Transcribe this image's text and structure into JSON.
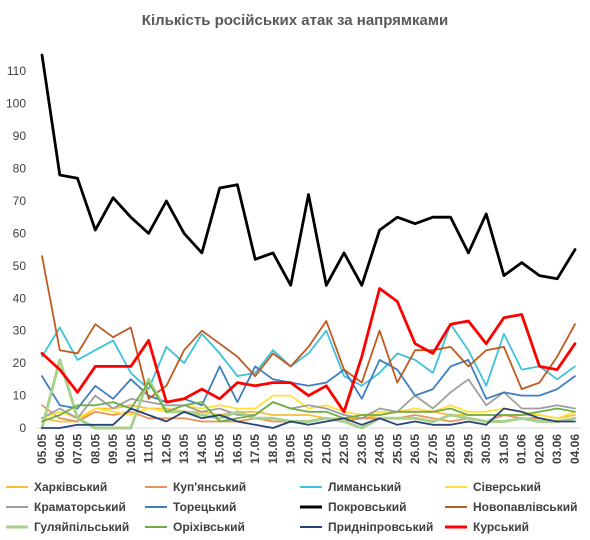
{
  "chart_data": {
    "type": "line",
    "title": "Кількість російських атак за напрямками",
    "categories": [
      "05.05",
      "06.05",
      "07.05",
      "08.05",
      "09.05",
      "10.05",
      "11.05",
      "12.05",
      "13.05",
      "14.05",
      "15.05",
      "16.05",
      "17.05",
      "18.05",
      "19.05",
      "20.05",
      "21.05",
      "22.05",
      "23.05",
      "24.05",
      "25.05",
      "26.05",
      "27.05",
      "28.05",
      "29.05",
      "30.05",
      "31.05",
      "01.06",
      "02.06",
      "03.06",
      "04.06"
    ],
    "ylim": [
      0,
      115
    ],
    "yticks": [
      "0",
      "10",
      "20",
      "30",
      "40",
      "50",
      "60",
      "70",
      "80",
      "90",
      "100",
      "110"
    ],
    "grid": false,
    "legend_position": "bottom",
    "series": [
      {
        "name": "Харківський",
        "color": "#f4c03b",
        "values": [
          3,
          2,
          2,
          6,
          6,
          7,
          6,
          6,
          5,
          5,
          4,
          5,
          5,
          4,
          4,
          4,
          3,
          3,
          3,
          4,
          5,
          5,
          5,
          4,
          4,
          4,
          4,
          4,
          4,
          3,
          4
        ]
      },
      {
        "name": "Куп'янський",
        "color": "#e8935a",
        "values": [
          7,
          3,
          2,
          5,
          4,
          5,
          3,
          3,
          3,
          2,
          2,
          2,
          3,
          2,
          2,
          2,
          3,
          2,
          3,
          3,
          3,
          4,
          3,
          2,
          3,
          2,
          4,
          3,
          3,
          2,
          3
        ]
      },
      {
        "name": "Лиманський",
        "color": "#3ec2dc",
        "values": [
          22,
          31,
          21,
          24,
          27,
          17,
          12,
          25,
          20,
          29,
          23,
          16,
          17,
          24,
          19,
          23,
          30,
          16,
          13,
          17,
          23,
          21,
          17,
          32,
          24,
          13,
          29,
          18,
          19,
          15,
          19
        ]
      },
      {
        "name": "Сіверський",
        "color": "#ffe03c",
        "values": [
          3,
          5,
          3,
          6,
          5,
          4,
          6,
          5,
          7,
          6,
          7,
          6,
          6,
          10,
          10,
          6,
          7,
          5,
          4,
          5,
          5,
          6,
          5,
          7,
          5,
          5,
          6,
          5,
          4,
          3,
          5
        ]
      },
      {
        "name": "Краматорський",
        "color": "#9f9f9f",
        "values": [
          3,
          6,
          3,
          10,
          6,
          9,
          8,
          7,
          7,
          5,
          6,
          4,
          4,
          8,
          6,
          7,
          6,
          4,
          3,
          6,
          5,
          10,
          6,
          11,
          15,
          7,
          11,
          6,
          6,
          7,
          6
        ]
      },
      {
        "name": "Торецький",
        "color": "#3f7fc0",
        "values": [
          16,
          7,
          6,
          13,
          9,
          15,
          10,
          8,
          9,
          7,
          19,
          8,
          19,
          15,
          14,
          13,
          14,
          18,
          9,
          21,
          18,
          10,
          12,
          19,
          21,
          9,
          11,
          10,
          10,
          12,
          16
        ]
      },
      {
        "name": "Покровський",
        "color": "#000000",
        "values": [
          115,
          78,
          77,
          61,
          71,
          65,
          60,
          70,
          60,
          54,
          74,
          75,
          52,
          54,
          44,
          72,
          44,
          54,
          44,
          61,
          65,
          63,
          65,
          65,
          54,
          66,
          47,
          51,
          47,
          46,
          55
        ]
      },
      {
        "name": "Новопавлівський",
        "color": "#c05a1e",
        "values": [
          53,
          24,
          23,
          32,
          28,
          31,
          9,
          13,
          24,
          30,
          26,
          22,
          16,
          23,
          19,
          25,
          33,
          18,
          14,
          30,
          14,
          24,
          24,
          25,
          19,
          24,
          25,
          12,
          14,
          22,
          32
        ]
      },
      {
        "name": "Гуляйпільський",
        "color": "#a9d18e",
        "values": [
          0,
          21,
          3,
          0,
          0,
          0,
          15,
          5,
          5,
          4,
          3,
          5,
          3,
          3,
          2,
          2,
          3,
          2,
          0,
          3,
          3,
          3,
          2,
          4,
          3,
          2,
          2,
          3,
          2,
          2,
          3
        ]
      },
      {
        "name": "Оріхівський",
        "color": "#70ad47",
        "values": [
          2,
          4,
          7,
          7,
          8,
          6,
          14,
          5,
          7,
          8,
          2,
          3,
          4,
          8,
          6,
          5,
          5,
          3,
          4,
          4,
          5,
          5,
          5,
          6,
          4,
          4,
          4,
          4,
          5,
          6,
          5
        ]
      },
      {
        "name": "Придніпровський",
        "color": "#264478",
        "values": [
          0,
          0,
          1,
          1,
          1,
          6,
          4,
          2,
          5,
          3,
          4,
          2,
          1,
          0,
          2,
          1,
          2,
          3,
          1,
          3,
          1,
          2,
          1,
          1,
          2,
          1,
          6,
          5,
          3,
          2,
          2
        ]
      },
      {
        "name": "Курський",
        "color": "#ff0000",
        "bold": true,
        "values": [
          23,
          18,
          11,
          19,
          19,
          19,
          27,
          8,
          9,
          12,
          9,
          14,
          13,
          14,
          14,
          10,
          13,
          5,
          22,
          43,
          39,
          26,
          23,
          32,
          33,
          26,
          34,
          35,
          19,
          18,
          26
        ]
      }
    ]
  }
}
